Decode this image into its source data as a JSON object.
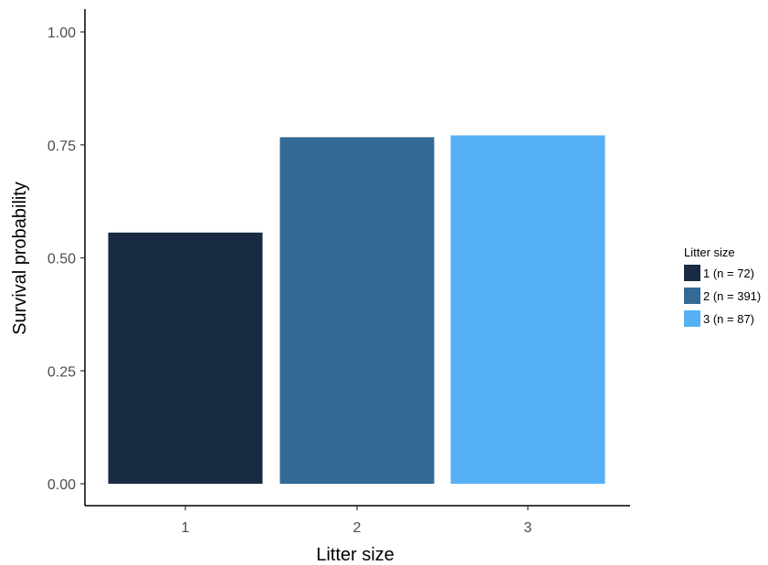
{
  "chart_data": {
    "type": "bar",
    "xlabel": "Litter size",
    "ylabel": "Survival probability",
    "categories": [
      "1",
      "2",
      "3"
    ],
    "values": [
      0.556,
      0.767,
      0.771
    ],
    "colors": [
      "#182b42",
      "#346a96",
      "#56b0f5"
    ],
    "ylim": [
      0,
      1
    ],
    "y_ticks": [
      "0.00",
      "0.25",
      "0.50",
      "0.75",
      "1.00"
    ],
    "y_tick_values": [
      0,
      0.25,
      0.5,
      0.75,
      1.0
    ],
    "grid": false,
    "legend": {
      "title": "Litter size",
      "position": "right",
      "entries": [
        "1 (n = 72)",
        "2 (n = 391)",
        "3 (n = 87)"
      ]
    }
  }
}
